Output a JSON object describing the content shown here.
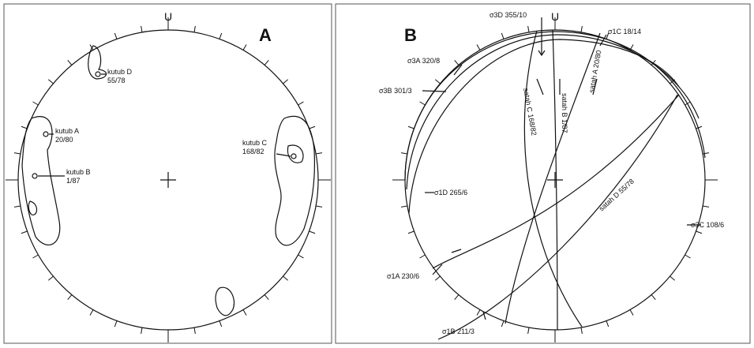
{
  "panel_a": {
    "north": "U",
    "label": "A",
    "poles": [
      {
        "name": "kutub D",
        "value": "55/78"
      },
      {
        "name": "kutub A",
        "value": "20/80"
      },
      {
        "name": "kutub B",
        "value": "1/87"
      },
      {
        "name": "kutub C",
        "value": "168/82"
      }
    ]
  },
  "panel_b": {
    "north": "U",
    "label": "B",
    "stresses": [
      "σ3D 355/10",
      "σ1C 18/14",
      "σ3A 320/8",
      "σ3B 301/3",
      "σ1D 265/6",
      "σ3C 108/6",
      "σ1A 230/6",
      "σ1B 211/3"
    ],
    "planes": [
      "satah C 168/82",
      "satah B 1/87",
      "satah A 20/80",
      "satah D 55/78"
    ]
  }
}
